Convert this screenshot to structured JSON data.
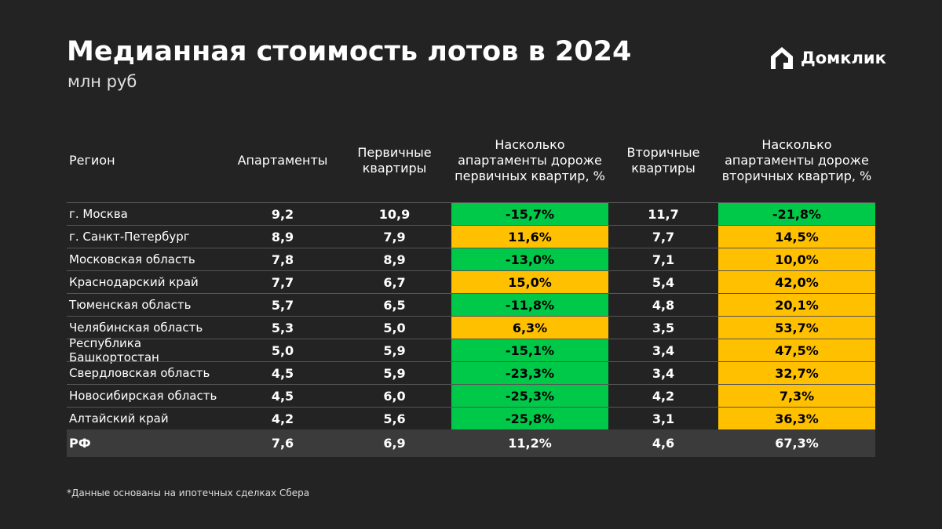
{
  "header": {
    "title": "Медианная стоимость лотов в 2024",
    "subtitle": "млн руб",
    "logo": "Домклик"
  },
  "table": {
    "columns": [
      "Регион",
      "Апартаменты",
      "Первичные\nквартиры",
      "Насколько\nапартаменты дороже\nпервичных квартир, %",
      "Вторичные\nквартиры",
      "Насколько\nапартаменты дороже\nвторичных квартир, %"
    ],
    "highlight_columns": [
      3,
      5
    ],
    "colors": {
      "negative": "#00c94a",
      "positive": "#ffc000"
    },
    "rows": [
      [
        "г. Москва",
        "9,2",
        "10,9",
        "-15,7%",
        "11,7",
        "-21,8%"
      ],
      [
        "г. Санкт-Петербург",
        "8,9",
        "7,9",
        "11,6%",
        "7,7",
        "14,5%"
      ],
      [
        "Московская область",
        "7,8",
        "8,9",
        "-13,0%",
        "7,1",
        "10,0%"
      ],
      [
        "Краснодарский край",
        "7,7",
        "6,7",
        "15,0%",
        "5,4",
        "42,0%"
      ],
      [
        "Тюменская область",
        "5,7",
        "6,5",
        "-11,8%",
        "4,8",
        "20,1%"
      ],
      [
        "Челябинская область",
        "5,3",
        "5,0",
        "6,3%",
        "3,5",
        "53,7%"
      ],
      [
        "Республика Башкортостан",
        "5,0",
        "5,9",
        "-15,1%",
        "3,4",
        "47,5%"
      ],
      [
        "Свердловская область",
        "4,5",
        "5,9",
        "-23,3%",
        "3,4",
        "32,7%"
      ],
      [
        "Новосибирская область",
        "4,5",
        "6,0",
        "-25,3%",
        "4,2",
        "7,3%"
      ],
      [
        "Алтайский край",
        "4,2",
        "5,6",
        "-25,8%",
        "3,1",
        "36,3%"
      ]
    ],
    "total": [
      "РФ",
      "7,6",
      "6,9",
      "11,2%",
      "4,6",
      "67,3%"
    ]
  },
  "footnote": "*Данные основаны на ипотечных сделках Сбера"
}
